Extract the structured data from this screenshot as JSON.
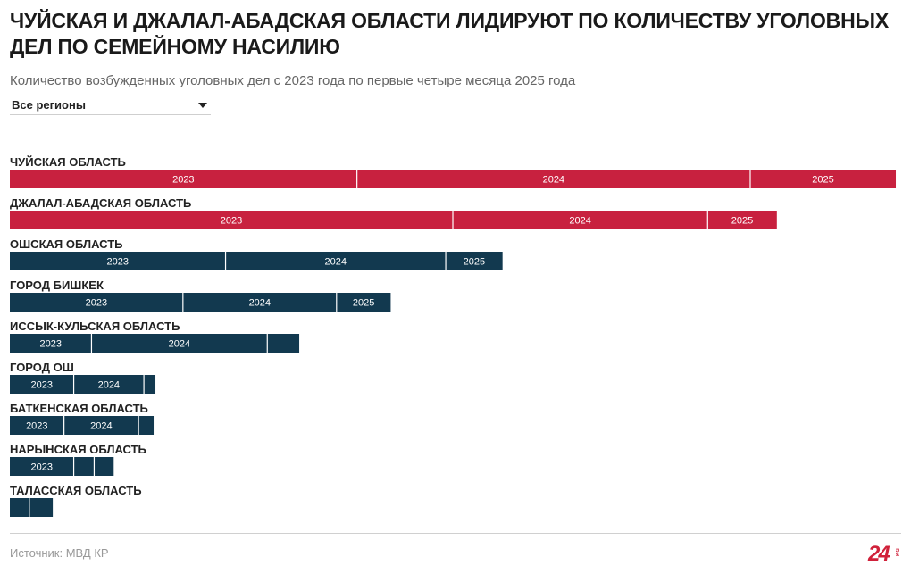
{
  "header": {
    "title": "ЧУЙСКАЯ И ДЖАЛАЛ-АБАДСКАЯ ОБЛАСТИ ЛИДИРУЮТ ПО КОЛИЧЕСТВУ УГОЛОВНЫХ ДЕЛ ПО СЕМЕЙНОМУ НАСИЛИЮ",
    "subtitle": "Количество возбужденных уголовных дел с 2023 года по первые четыре месяца 2025 года"
  },
  "filter": {
    "selected": "Все регионы"
  },
  "footer": {
    "source": "Источник: МВД КР",
    "logo_text": "24",
    "logo_suffix": "KG"
  },
  "colors": {
    "highlight": "#c8213f",
    "default": "#12394f"
  },
  "chart_data": {
    "type": "bar",
    "orientation": "horizontal",
    "stacked": true,
    "segment_names": [
      "2023",
      "2024",
      "2025"
    ],
    "xlim": [
      0,
      1000
    ],
    "rows": [
      {
        "label": "ЧУЙСКАЯ ОБЛАСТЬ",
        "values": [
          391,
          443,
          164
        ],
        "highlight": true
      },
      {
        "label": "ДЖАЛАЛ-АБАДСКАЯ ОБЛАСТЬ",
        "values": [
          499,
          287,
          78
        ],
        "highlight": true
      },
      {
        "label": "ОШСКАЯ ОБЛАСТЬ",
        "values": [
          243,
          248,
          64
        ],
        "highlight": false
      },
      {
        "label": "ГОРОД БИШКЕК",
        "values": [
          195,
          173,
          61
        ],
        "highlight": false
      },
      {
        "label": "ИССЫК-КУЛЬСКАЯ ОБЛАСТЬ",
        "values": [
          92,
          198,
          36
        ],
        "highlight": false
      },
      {
        "label": "ГОРОД ОШ",
        "values": [
          72,
          79,
          13
        ],
        "highlight": false
      },
      {
        "label": "БАТКЕНСКАЯ ОБЛАСТЬ",
        "values": [
          61,
          84,
          17
        ],
        "highlight": false
      },
      {
        "label": "НАРЫНСКАЯ ОБЛАСТЬ",
        "values": [
          72,
          23,
          22
        ],
        "highlight": false
      },
      {
        "label": "ТАЛАССКАЯ ОБЛАСТЬ",
        "values": [
          22,
          27,
          1
        ],
        "highlight": false
      }
    ]
  }
}
